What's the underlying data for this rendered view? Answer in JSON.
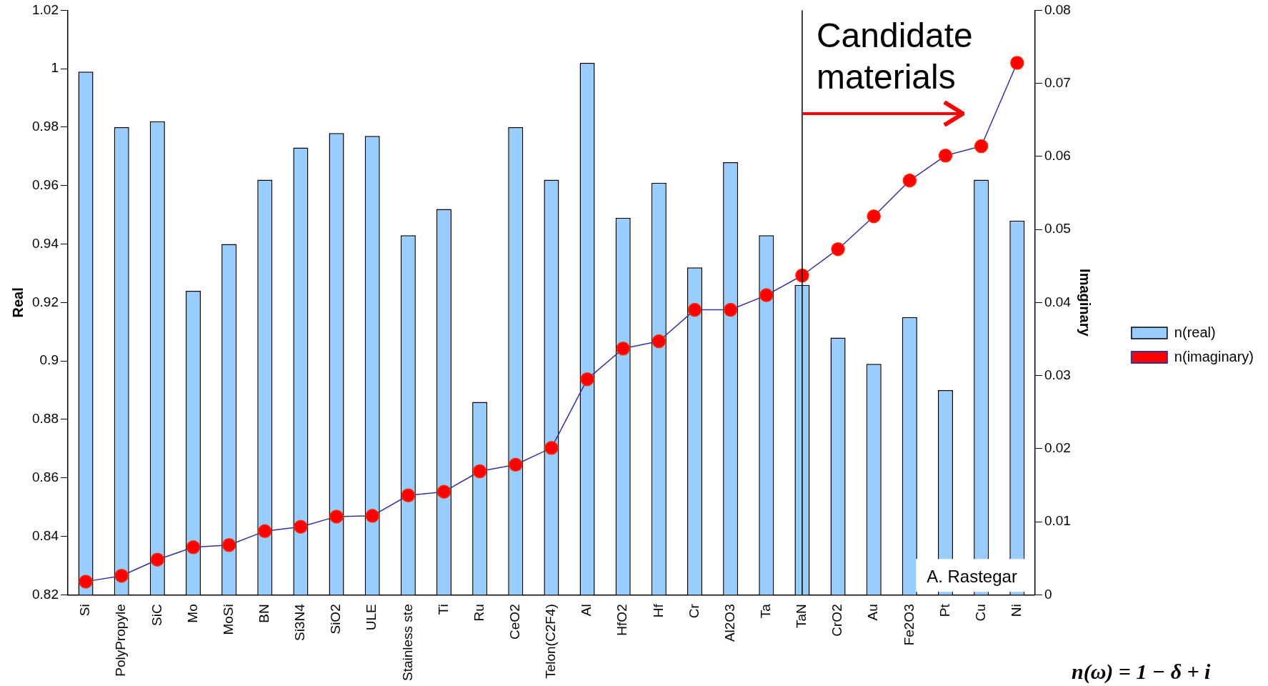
{
  "chart_data": {
    "type": "bar",
    "ylabel": "Real",
    "y2label": "Imaginary",
    "categories": [
      "Si",
      "PolyPropyle",
      "SiC",
      "Mo",
      "MoSi",
      "BN",
      "Si3N4",
      "SiO2",
      "ULE",
      "Stainless ste",
      "Ti",
      "Ru",
      "CeO2",
      "Telon(C2F4)",
      "Al",
      "HfO2",
      "Hf",
      "Cr",
      "Al2O3",
      "Ta",
      "TaN",
      "CrO2",
      "Au",
      "Fe2O3",
      "Pt",
      "Cu",
      "Ni"
    ],
    "series": [
      {
        "name": "n(real)",
        "color": "#99ccff",
        "values": [
          0.999,
          0.98,
          0.982,
          0.924,
          0.94,
          0.962,
          0.973,
          0.978,
          0.977,
          0.943,
          0.952,
          0.886,
          0.98,
          0.962,
          1.002,
          0.949,
          0.961,
          0.932,
          0.968,
          0.943,
          0.926,
          0.908,
          0.899,
          0.915,
          0.89,
          0.962,
          0.948
        ]
      },
      {
        "name": "n(imaginary)",
        "type": "line",
        "axis": "y2",
        "color": "#333399",
        "marker": "circle",
        "values": [
          0.0018,
          0.0026,
          0.0048,
          0.0065,
          0.0068,
          0.0087,
          0.0093,
          0.0107,
          0.0108,
          0.0136,
          0.0141,
          0.0169,
          0.0178,
          0.0201,
          0.0295,
          0.0337,
          0.0347,
          0.039,
          0.039,
          0.041,
          0.0437,
          0.0473,
          0.0518,
          0.0567,
          0.0601,
          0.0614,
          0.0728
        ]
      }
    ],
    "ylim": [
      0.82,
      1.02
    ],
    "yticks": [
      0.82,
      0.84,
      0.86,
      0.88,
      0.9,
      0.92,
      0.94,
      0.96,
      0.98,
      1,
      1.02
    ],
    "y2lim": [
      0,
      0.08
    ],
    "y2ticks": [
      0,
      0.01,
      0.02,
      0.03,
      0.04,
      0.05,
      0.06,
      0.07,
      0.08
    ],
    "ref_lines": [
      {
        "axis": "x",
        "value": "TaN",
        "color": "#000000"
      }
    ],
    "annotations": [
      "Candidate materials",
      "A. Rastegar",
      "n(ω) = 1 − δ + i"
    ],
    "grid": false,
    "legend": "right"
  }
}
